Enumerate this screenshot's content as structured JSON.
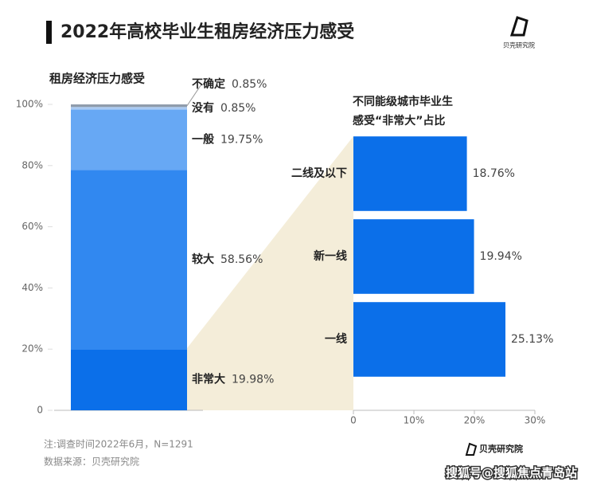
{
  "header": {
    "title": "2022年高校毕业生租房经济压力感受",
    "logo": "贝壳研究院"
  },
  "chart_data": [
    {
      "type": "stacked_bar",
      "title": "租房经济压力感受",
      "ylim": [
        0,
        100
      ],
      "yticks": [
        0,
        {
          "value": 20,
          "label": "20%"
        },
        {
          "value": 40,
          "label": "40%"
        },
        {
          "value": 60,
          "label": "60%"
        },
        {
          "value": 80,
          "label": "80%"
        },
        {
          "value": 100,
          "label": "100%"
        }
      ],
      "series": [
        {
          "name": "非常大",
          "color": "#0b6fe9",
          "values": [
            19.98
          ],
          "value_labels": [
            "19.98%"
          ]
        },
        {
          "name": "较大",
          "color": "#3188f0",
          "values": [
            58.56
          ],
          "value_labels": [
            "58.56%"
          ]
        },
        {
          "name": "一般",
          "color": "#67a8f4",
          "values": [
            19.75
          ],
          "value_labels": [
            "19.75%"
          ]
        },
        {
          "name": "没有",
          "color": "#a9c9f2",
          "values": [
            0.85
          ],
          "value_labels": [
            "0.85%"
          ]
        },
        {
          "name": "不确定",
          "color": "#8e9bab",
          "values": [
            0.85
          ],
          "value_labels": [
            "0.85%"
          ]
        }
      ]
    },
    {
      "type": "hbar",
      "title": [
        "不同能级城市毕业生",
        "感受“非常大”占比"
      ],
      "categories": [
        "二线及以下",
        "新一线",
        "一线"
      ],
      "values": [
        18.76,
        19.94,
        25.13
      ],
      "value_labels": [
        "18.76%",
        "19.94%",
        "25.13%"
      ],
      "color": "#0b6fe9",
      "xlim": [
        0,
        30
      ],
      "xticks": [
        0,
        {
          "value": 10,
          "label": "10%"
        },
        {
          "value": 20,
          "label": "20%"
        },
        {
          "value": 30,
          "label": "30%"
        }
      ]
    }
  ],
  "footer": {
    "notes": [
      "注:调查时间2022年6月，N=1291",
      "数据来源：贝壳研究院"
    ],
    "logo": "贝壳研究院",
    "watermark": "搜狐号@搜狐焦点青岛站"
  }
}
